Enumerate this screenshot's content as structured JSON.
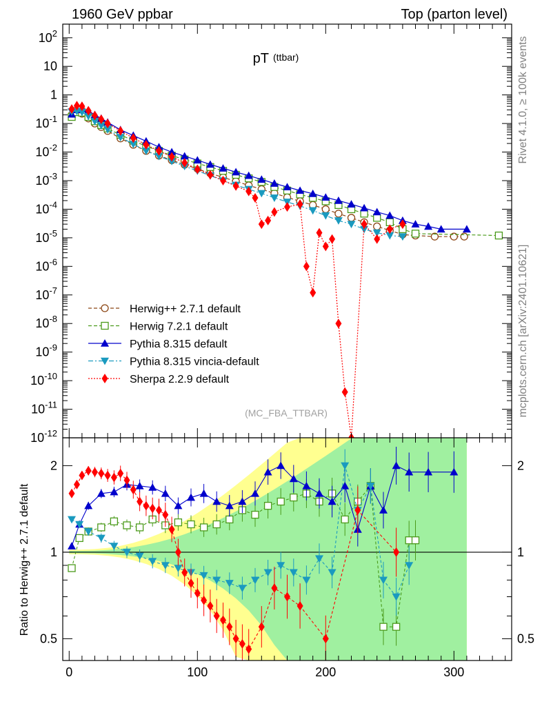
{
  "header": {
    "left": "1960 GeV ppbar",
    "right": "Top (parton level)"
  },
  "side_labels": {
    "top": "Rivet 4.1.0, ≥ 100k events",
    "bottom": "mcplots.cern.ch [arXiv:2401.10621]"
  },
  "analysis_tag": "(MC_FBA_TTBAR)",
  "colors": {
    "herwigpp": "#8b4513",
    "herwig7": "#4a9a1a",
    "pythia": "#0000cc",
    "vincia": "#1a9abf",
    "sherpa": "#ff0000",
    "band_green": "#a0f0a0",
    "band_yellow": "#ffff90"
  },
  "chart_data": [
    {
      "type": "line",
      "title": "pT",
      "title_sub": "(ttbar)",
      "xlabel": "",
      "ylabel": "",
      "yscale": "log",
      "xlim": [
        -5,
        345
      ],
      "ylim": [
        1e-12,
        300
      ],
      "xticks": [
        "0",
        "100",
        "200",
        "300"
      ],
      "yticks": [
        "10^-12",
        "10^-11",
        "10^-10",
        "10^-9",
        "10^-8",
        "10^-7",
        "10^-6",
        "10^-5",
        "10^-4",
        "10^-3",
        "10^-2",
        "10^-1",
        "1",
        "10",
        "10^2"
      ],
      "legend": {
        "position": "bottom-left",
        "entries": [
          "Herwig++ 2.7.1 default",
          "Herwig 7.2.1 default",
          "Pythia 8.315 default",
          "Pythia 8.315 vincia-default",
          "Sherpa 2.2.9 default"
        ]
      },
      "series": [
        {
          "name": "Herwig++ 2.7.1 default",
          "marker": "open-circle",
          "dash": "5,3",
          "x": [
            2,
            6,
            10,
            15,
            20,
            25,
            30,
            40,
            50,
            60,
            70,
            80,
            90,
            100,
            110,
            120,
            130,
            140,
            150,
            160,
            170,
            180,
            190,
            200,
            210,
            220,
            230,
            240,
            250,
            260,
            270,
            285,
            300,
            308
          ],
          "y": [
            0.2,
            0.26,
            0.22,
            0.15,
            0.1,
            0.075,
            0.055,
            0.03,
            0.018,
            0.011,
            0.0075,
            0.0052,
            0.0036,
            0.0026,
            0.0018,
            0.0013,
            0.00095,
            0.00068,
            0.0005,
            0.00036,
            0.00026,
            0.00019,
            0.00014,
            0.0001,
            7e-05,
            5e-05,
            3.5e-05,
            2.5e-05,
            1.8e-05,
            1.3e-05,
            1.2e-05,
            1.1e-05,
            1.1e-05,
            1.1e-05
          ]
        },
        {
          "name": "Herwig 7.2.1 default",
          "marker": "open-square",
          "dash": "5,3",
          "x": [
            2,
            6,
            10,
            15,
            20,
            25,
            30,
            40,
            50,
            60,
            70,
            80,
            90,
            100,
            110,
            120,
            130,
            140,
            150,
            160,
            170,
            180,
            190,
            200,
            210,
            220,
            230,
            240,
            250,
            260,
            270,
            335
          ],
          "y": [
            0.17,
            0.25,
            0.24,
            0.17,
            0.12,
            0.088,
            0.067,
            0.04,
            0.025,
            0.016,
            0.011,
            0.0075,
            0.0055,
            0.004,
            0.003,
            0.0022,
            0.0016,
            0.0012,
            0.0009,
            0.0006,
            0.00045,
            0.00033,
            0.00025,
            0.00019,
            0.00014,
            0.0001,
            7e-05,
            5e-05,
            3.5e-05,
            2e-05,
            1.4e-05,
            1.2e-05
          ]
        },
        {
          "name": "Pythia 8.315 default",
          "marker": "triangle-up",
          "dash": "",
          "x": [
            2,
            6,
            10,
            15,
            20,
            25,
            30,
            40,
            50,
            60,
            70,
            80,
            90,
            100,
            110,
            120,
            130,
            140,
            150,
            160,
            170,
            180,
            190,
            200,
            210,
            220,
            230,
            240,
            250,
            260,
            270,
            280,
            290,
            310
          ],
          "y": [
            0.21,
            0.3,
            0.32,
            0.28,
            0.2,
            0.15,
            0.11,
            0.06,
            0.038,
            0.024,
            0.015,
            0.01,
            0.0072,
            0.0052,
            0.0037,
            0.0027,
            0.002,
            0.0015,
            0.0011,
            0.0008,
            0.0006,
            0.00045,
            0.00035,
            0.00026,
            0.0002,
            0.00015,
            0.00011,
            8e-05,
            6e-05,
            4e-05,
            3e-05,
            2.5e-05,
            2e-05,
            2e-05
          ]
        },
        {
          "name": "Pythia 8.315 vincia-default",
          "marker": "triangle-down",
          "dash": "7,3,2,3",
          "x": [
            2,
            6,
            10,
            15,
            20,
            25,
            30,
            40,
            50,
            60,
            70,
            80,
            90,
            100,
            110,
            120,
            130,
            140,
            150,
            160,
            170,
            180,
            190,
            200,
            210,
            220,
            230,
            240,
            250,
            260
          ],
          "y": [
            0.26,
            0.27,
            0.25,
            0.18,
            0.12,
            0.085,
            0.062,
            0.033,
            0.019,
            0.011,
            0.0072,
            0.0048,
            0.0032,
            0.0022,
            0.0015,
            0.001,
            0.0007,
            0.0005,
            0.00036,
            0.00025,
            0.00018,
            0.00013,
            9e-05,
            6e-05,
            4e-05,
            3e-05,
            2e-05,
            1.5e-05,
            1.2e-05,
            1.1e-05
          ]
        },
        {
          "name": "Sherpa 2.2.9 default",
          "marker": "diamond",
          "dash": "2,2",
          "x": [
            2,
            6,
            10,
            15,
            20,
            25,
            30,
            40,
            50,
            60,
            70,
            80,
            90,
            100,
            110,
            120,
            130,
            140,
            145,
            150,
            155,
            160,
            170,
            180,
            185,
            190,
            195,
            200,
            205,
            210,
            215,
            220,
            230,
            240,
            250,
            260
          ],
          "y": [
            0.32,
            0.42,
            0.4,
            0.28,
            0.19,
            0.14,
            0.1,
            0.055,
            0.031,
            0.018,
            0.011,
            0.0068,
            0.0042,
            0.0025,
            0.0016,
            0.001,
            0.00065,
            0.00042,
            0.00025,
            3e-05,
            4e-05,
            8e-05,
            0.00012,
            0.00015,
            1e-06,
            1.2e-07,
            1.5e-05,
            5e-06,
            9e-06,
            1e-08,
            4e-11,
            5e-14,
            3e-05,
            9e-06,
            2e-05,
            3e-05
          ]
        }
      ]
    },
    {
      "type": "line",
      "title": "",
      "xlabel": "",
      "ylabel": "Ratio to Herwig++ 2.7.1 default",
      "yscale": "log",
      "xlim": [
        -5,
        345
      ],
      "ylim": [
        0.42,
        2.5
      ],
      "xticks": [
        "0",
        "100",
        "200",
        "300"
      ],
      "yticks": [
        "0.5",
        "1",
        "2"
      ],
      "reference_line": 1,
      "series": [
        {
          "name": "Herwig 7.2.1 default",
          "marker": "open-square",
          "x": [
            2,
            8,
            15,
            25,
            35,
            45,
            55,
            65,
            75,
            85,
            95,
            105,
            115,
            125,
            135,
            145,
            155,
            165,
            175,
            185,
            195,
            205,
            215,
            225,
            235,
            245,
            255,
            265,
            270
          ],
          "y": [
            0.88,
            1.12,
            1.18,
            1.22,
            1.28,
            1.24,
            1.22,
            1.3,
            1.24,
            1.27,
            1.25,
            1.22,
            1.25,
            1.3,
            1.4,
            1.35,
            1.45,
            1.5,
            1.55,
            1.6,
            1.5,
            1.6,
            1.3,
            1.5,
            1.7,
            0.55,
            0.55,
            1.1,
            1.1
          ]
        },
        {
          "name": "Pythia 8.315 default",
          "marker": "triangle-up",
          "x": [
            2,
            8,
            15,
            25,
            35,
            45,
            55,
            65,
            75,
            85,
            95,
            105,
            115,
            125,
            135,
            145,
            155,
            165,
            175,
            185,
            195,
            205,
            215,
            225,
            235,
            245,
            255,
            265,
            280,
            300
          ],
          "y": [
            1.05,
            1.25,
            1.45,
            1.6,
            1.62,
            1.72,
            1.7,
            1.68,
            1.6,
            1.45,
            1.55,
            1.6,
            1.5,
            1.45,
            1.5,
            1.6,
            1.9,
            2.0,
            1.8,
            1.7,
            1.6,
            1.5,
            1.7,
            1.2,
            1.7,
            1.4,
            2.0,
            1.9,
            1.9,
            1.9
          ]
        },
        {
          "name": "Pythia 8.315 vincia-default",
          "marker": "triangle-down",
          "x": [
            2,
            8,
            15,
            25,
            35,
            45,
            55,
            65,
            75,
            85,
            95,
            105,
            115,
            125,
            135,
            145,
            155,
            165,
            175,
            185,
            195,
            205,
            215,
            225,
            235,
            245,
            255,
            265
          ],
          "y": [
            1.3,
            1.25,
            1.18,
            1.12,
            1.05,
            1.0,
            0.97,
            0.93,
            0.9,
            0.88,
            0.85,
            0.83,
            0.8,
            0.78,
            0.75,
            0.8,
            0.85,
            0.9,
            0.85,
            0.8,
            0.95,
            0.85,
            2.0,
            1.4,
            1.7,
            0.8,
            0.7,
            0.9
          ]
        },
        {
          "name": "Sherpa 2.2.9 default",
          "marker": "diamond",
          "x": [
            2,
            6,
            10,
            15,
            20,
            25,
            30,
            35,
            40,
            45,
            50,
            55,
            60,
            65,
            70,
            75,
            80,
            85,
            90,
            95,
            100,
            105,
            110,
            115,
            120,
            125,
            130,
            135,
            140,
            150,
            160,
            170,
            180,
            200,
            225,
            255
          ],
          "y": [
            1.6,
            1.72,
            1.85,
            1.92,
            1.9,
            1.88,
            1.85,
            1.82,
            1.88,
            1.78,
            1.65,
            1.5,
            1.45,
            1.42,
            1.4,
            1.35,
            1.2,
            1.0,
            0.85,
            0.78,
            0.72,
            0.68,
            0.65,
            0.6,
            0.58,
            0.55,
            0.5,
            0.48,
            0.46,
            0.55,
            0.75,
            0.7,
            0.65,
            0.5,
            1.4,
            1.0
          ]
        }
      ]
    }
  ]
}
